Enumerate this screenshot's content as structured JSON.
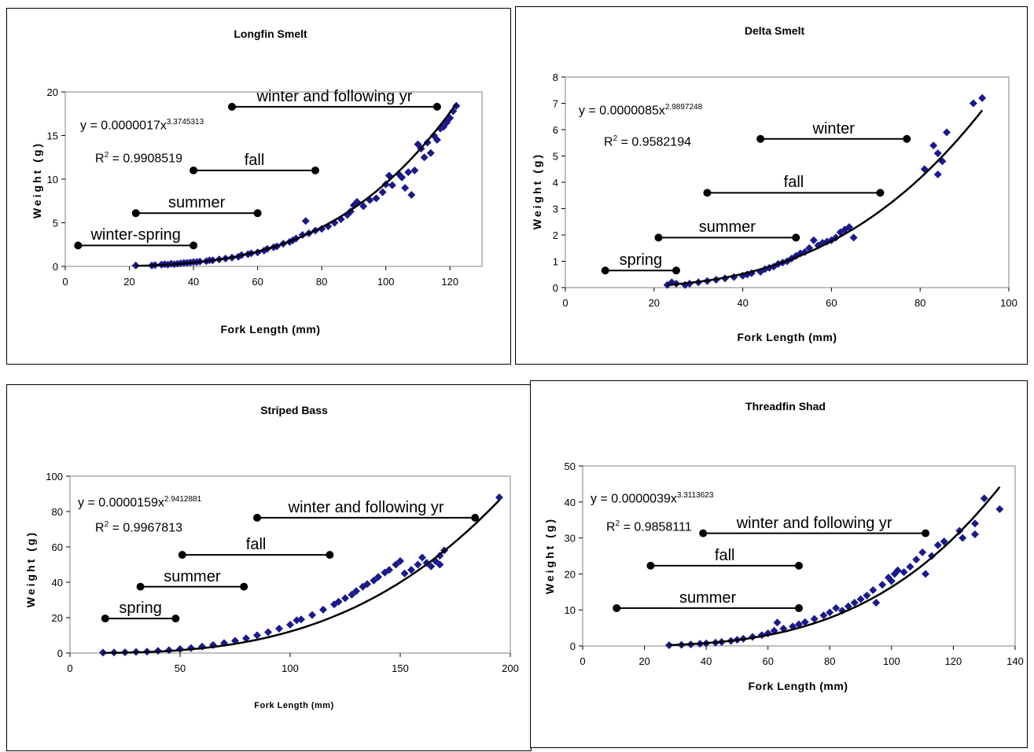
{
  "chart_data": [
    {
      "type": "scatter",
      "title": "Longfin Smelt",
      "xlabel": "Fork Length (mm)",
      "ylabel": "Weight (g)",
      "xlim": [
        0,
        130
      ],
      "ylim": [
        0,
        20
      ],
      "xticks": [
        "0",
        "20",
        "40",
        "60",
        "80",
        "100",
        "120"
      ],
      "yticks": [
        "0",
        "5",
        "10",
        "15",
        "20"
      ],
      "equation": {
        "prefix": "y = 0.0000017x",
        "exponent": "3.3745313"
      },
      "r2": {
        "prefix": "R",
        "sup": "2",
        "suffix": " = 0.9908519"
      },
      "fit": {
        "a": 1.7e-06,
        "b": 3.3745313
      },
      "seasons": [
        {
          "label": "winter-spring",
          "start": 4,
          "end": 40,
          "y": 2.4
        },
        {
          "label": "summer",
          "start": 22,
          "end": 60,
          "y": 6.1
        },
        {
          "label": "fall",
          "start": 40,
          "end": 78,
          "y": 11.0
        },
        {
          "label": "winter and following yr",
          "start": 52,
          "end": 116,
          "y": 18.3
        }
      ],
      "points": [
        [
          22,
          0.1
        ],
        [
          27,
          0.1
        ],
        [
          28,
          0.15
        ],
        [
          30,
          0.2
        ],
        [
          31,
          0.25
        ],
        [
          32,
          0.2
        ],
        [
          33,
          0.3
        ],
        [
          34,
          0.25
        ],
        [
          35,
          0.3
        ],
        [
          36,
          0.35
        ],
        [
          37,
          0.4
        ],
        [
          38,
          0.4
        ],
        [
          39,
          0.45
        ],
        [
          40,
          0.5
        ],
        [
          41,
          0.5
        ],
        [
          42,
          0.55
        ],
        [
          44,
          0.6
        ],
        [
          45,
          0.7
        ],
        [
          46,
          0.7
        ],
        [
          48,
          0.8
        ],
        [
          50,
          0.9
        ],
        [
          52,
          1.0
        ],
        [
          54,
          1.1
        ],
        [
          55,
          1.3
        ],
        [
          57,
          1.4
        ],
        [
          58,
          1.5
        ],
        [
          60,
          1.6
        ],
        [
          62,
          1.8
        ],
        [
          63,
          2.0
        ],
        [
          65,
          2.2
        ],
        [
          66,
          2.3
        ],
        [
          68,
          2.6
        ],
        [
          70,
          2.8
        ],
        [
          71,
          3.0
        ],
        [
          72,
          3.2
        ],
        [
          75,
          5.2
        ],
        [
          74,
          3.6
        ],
        [
          76,
          3.8
        ],
        [
          78,
          4.1
        ],
        [
          80,
          4.3
        ],
        [
          82,
          4.6
        ],
        [
          84,
          5.0
        ],
        [
          86,
          5.4
        ],
        [
          88,
          5.9
        ],
        [
          89,
          6.3
        ],
        [
          90,
          7.0
        ],
        [
          91,
          7.4
        ],
        [
          93,
          6.9
        ],
        [
          95,
          7.6
        ],
        [
          97,
          7.8
        ],
        [
          99,
          8.5
        ],
        [
          100,
          9.4
        ],
        [
          101,
          10.4
        ],
        [
          102,
          9.3
        ],
        [
          104,
          10.6
        ],
        [
          105,
          10.2
        ],
        [
          106,
          9.0
        ],
        [
          107,
          10.8
        ],
        [
          108,
          8.2
        ],
        [
          109,
          11.0
        ],
        [
          110,
          14.0
        ],
        [
          111,
          13.5
        ],
        [
          112,
          12.5
        ],
        [
          113,
          14.2
        ],
        [
          114,
          13.0
        ],
        [
          115,
          15.0
        ],
        [
          116,
          14.5
        ],
        [
          117,
          15.8
        ],
        [
          118,
          16.0
        ],
        [
          119,
          16.5
        ],
        [
          120,
          17.0
        ],
        [
          121,
          17.8
        ],
        [
          122,
          18.4
        ]
      ]
    },
    {
      "type": "scatter",
      "title": "Delta Smelt",
      "xlabel": "Fork Length (mm)",
      "ylabel": "Weight (g)",
      "xlim": [
        0,
        100
      ],
      "ylim": [
        0,
        8
      ],
      "xticks": [
        "0",
        "20",
        "40",
        "60",
        "80",
        "100"
      ],
      "yticks": [
        "0",
        "1",
        "2",
        "3",
        "4",
        "5",
        "6",
        "7",
        "8"
      ],
      "equation": {
        "prefix": "y = 0.0000085x",
        "exponent": "2.9897248"
      },
      "r2": {
        "prefix": "R",
        "sup": "2",
        "suffix": " = 0.9582194"
      },
      "fit": {
        "a": 8.5e-06,
        "b": 2.9897248
      },
      "seasons": [
        {
          "label": "spring",
          "start": 9,
          "end": 25,
          "y": 0.65
        },
        {
          "label": "summer",
          "start": 21,
          "end": 52,
          "y": 1.9
        },
        {
          "label": "fall",
          "start": 32,
          "end": 71,
          "y": 3.6
        },
        {
          "label": "winter",
          "start": 44,
          "end": 77,
          "y": 5.65
        }
      ],
      "points": [
        [
          23,
          0.1
        ],
        [
          24,
          0.2
        ],
        [
          25,
          0.15
        ],
        [
          27,
          0.1
        ],
        [
          28,
          0.15
        ],
        [
          30,
          0.2
        ],
        [
          32,
          0.25
        ],
        [
          34,
          0.3
        ],
        [
          36,
          0.35
        ],
        [
          38,
          0.4
        ],
        [
          40,
          0.45
        ],
        [
          41,
          0.5
        ],
        [
          42,
          0.55
        ],
        [
          44,
          0.6
        ],
        [
          45,
          0.7
        ],
        [
          46,
          0.75
        ],
        [
          47,
          0.8
        ],
        [
          48,
          0.9
        ],
        [
          49,
          0.95
        ],
        [
          50,
          1.0
        ],
        [
          51,
          1.1
        ],
        [
          52,
          1.2
        ],
        [
          53,
          1.3
        ],
        [
          54,
          1.35
        ],
        [
          55,
          1.5
        ],
        [
          56,
          1.8
        ],
        [
          57,
          1.6
        ],
        [
          58,
          1.7
        ],
        [
          59,
          1.75
        ],
        [
          60,
          1.8
        ],
        [
          61,
          1.9
        ],
        [
          62,
          2.1
        ],
        [
          63,
          2.2
        ],
        [
          64,
          2.3
        ],
        [
          65,
          1.9
        ],
        [
          81,
          4.5
        ],
        [
          83,
          5.4
        ],
        [
          84,
          5.1
        ],
        [
          84,
          4.3
        ],
        [
          85,
          4.8
        ],
        [
          86,
          5.9
        ],
        [
          92,
          7.0
        ],
        [
          94,
          7.2
        ]
      ]
    },
    {
      "type": "scatter",
      "title": "Striped Bass",
      "xlabel": "Fork Length (mm)",
      "ylabel": "Weight (g)",
      "xlim": [
        0,
        200
      ],
      "ylim": [
        0,
        100
      ],
      "xticks": [
        "0",
        "50",
        "100",
        "150",
        "200"
      ],
      "yticks": [
        "0",
        "20",
        "40",
        "60",
        "80",
        "100"
      ],
      "equation": {
        "prefix": "y = 0.0000159x",
        "exponent": "2.9412881"
      },
      "r2": {
        "prefix": "R",
        "sup": "2",
        "suffix": " = 0.9967813"
      },
      "fit": {
        "a": 1.59e-05,
        "b": 2.9412881
      },
      "seasons": [
        {
          "label": "spring",
          "start": 16,
          "end": 48,
          "y": 19.5
        },
        {
          "label": "summer",
          "start": 32,
          "end": 79,
          "y": 37.5
        },
        {
          "label": "fall",
          "start": 51,
          "end": 118,
          "y": 55.5
        },
        {
          "label": "winter and following yr",
          "start": 85,
          "end": 184,
          "y": 76.5
        }
      ],
      "points": [
        [
          15,
          0.2
        ],
        [
          20,
          0.3
        ],
        [
          25,
          0.4
        ],
        [
          30,
          0.6
        ],
        [
          35,
          0.8
        ],
        [
          40,
          1.2
        ],
        [
          45,
          1.6
        ],
        [
          50,
          2.2
        ],
        [
          55,
          2.8
        ],
        [
          60,
          3.6
        ],
        [
          65,
          4.5
        ],
        [
          70,
          5.6
        ],
        [
          75,
          6.9
        ],
        [
          80,
          8.3
        ],
        [
          85,
          10
        ],
        [
          90,
          11.8
        ],
        [
          95,
          13.8
        ],
        [
          100,
          16
        ],
        [
          103,
          18.5
        ],
        [
          105,
          19
        ],
        [
          110,
          21.5
        ],
        [
          115,
          24.5
        ],
        [
          120,
          27.5
        ],
        [
          122,
          29
        ],
        [
          125,
          31
        ],
        [
          128,
          33
        ],
        [
          130,
          35
        ],
        [
          133,
          37.5
        ],
        [
          135,
          39
        ],
        [
          138,
          41
        ],
        [
          140,
          43
        ],
        [
          143,
          45.5
        ],
        [
          145,
          47
        ],
        [
          148,
          50
        ],
        [
          150,
          52
        ],
        [
          152,
          45
        ],
        [
          155,
          47
        ],
        [
          158,
          50
        ],
        [
          160,
          54
        ],
        [
          162,
          51
        ],
        [
          164,
          49
        ],
        [
          166,
          52
        ],
        [
          168,
          55
        ],
        [
          170,
          58
        ],
        [
          168,
          50
        ],
        [
          195,
          88
        ]
      ]
    },
    {
      "type": "scatter",
      "title": "Threadfin Shad",
      "xlabel": "Fork Length (mm)",
      "ylabel": "Weight (g)",
      "xlim": [
        0,
        140
      ],
      "ylim": [
        0,
        50
      ],
      "xticks": [
        "0",
        "20",
        "40",
        "60",
        "80",
        "100",
        "120",
        "140"
      ],
      "yticks": [
        "0",
        "10",
        "20",
        "30",
        "40",
        "50"
      ],
      "equation": {
        "prefix": "y = 0.0000039x",
        "exponent": "3.3113623"
      },
      "r2": {
        "prefix": "R",
        "sup": "2",
        "suffix": " = 0.9858111"
      },
      "fit": {
        "a": 3.9e-06,
        "b": 3.3113623
      },
      "seasons": [
        {
          "label": "summer",
          "start": 11,
          "end": 70,
          "y": 10.5
        },
        {
          "label": "fall",
          "start": 22,
          "end": 70,
          "y": 22.3
        },
        {
          "label": "winter and following yr",
          "start": 39,
          "end": 111,
          "y": 31.3
        }
      ],
      "points": [
        [
          28,
          0.2
        ],
        [
          32,
          0.3
        ],
        [
          35,
          0.4
        ],
        [
          38,
          0.6
        ],
        [
          40,
          0.7
        ],
        [
          43,
          0.9
        ],
        [
          45,
          1.1
        ],
        [
          48,
          1.4
        ],
        [
          50,
          1.7
        ],
        [
          52,
          2.0
        ],
        [
          55,
          2.5
        ],
        [
          58,
          3.0
        ],
        [
          60,
          3.5
        ],
        [
          62,
          4.2
        ],
        [
          63,
          6.5
        ],
        [
          65,
          4.8
        ],
        [
          68,
          5.4
        ],
        [
          70,
          6.0
        ],
        [
          72,
          6.6
        ],
        [
          75,
          7.5
        ],
        [
          78,
          8.5
        ],
        [
          80,
          9.3
        ],
        [
          82,
          10.5
        ],
        [
          84,
          9.8
        ],
        [
          86,
          11
        ],
        [
          88,
          12
        ],
        [
          90,
          13
        ],
        [
          92,
          14
        ],
        [
          94,
          15.5
        ],
        [
          95,
          12
        ],
        [
          97,
          17
        ],
        [
          99,
          19
        ],
        [
          100,
          18
        ],
        [
          101,
          20
        ],
        [
          102,
          21
        ],
        [
          104,
          20.5
        ],
        [
          106,
          22
        ],
        [
          108,
          24
        ],
        [
          110,
          26
        ],
        [
          111,
          20
        ],
        [
          113,
          25
        ],
        [
          115,
          28
        ],
        [
          117,
          29
        ],
        [
          122,
          32
        ],
        [
          123,
          30
        ],
        [
          127,
          34
        ],
        [
          127,
          31
        ],
        [
          130,
          41
        ],
        [
          135,
          38
        ]
      ]
    }
  ]
}
